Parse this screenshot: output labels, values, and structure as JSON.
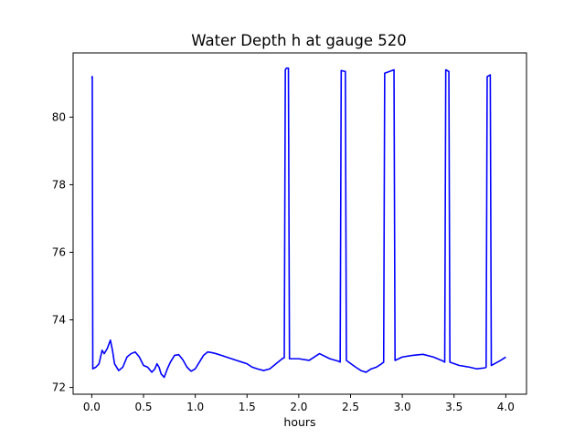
{
  "chart_data": {
    "type": "line",
    "title": "Water Depth h at gauge 520",
    "xlabel": "hours",
    "ylabel": "",
    "xlim": [
      -0.18,
      4.2
    ],
    "ylim": [
      71.8,
      81.9
    ],
    "xticks": [
      0.0,
      0.5,
      1.0,
      1.5,
      2.0,
      2.5,
      3.0,
      3.5,
      4.0
    ],
    "xtick_labels": [
      "0.0",
      "0.5",
      "1.0",
      "1.5",
      "2.0",
      "2.5",
      "3.0",
      "3.5",
      "4.0"
    ],
    "yticks": [
      72,
      74,
      76,
      78,
      80
    ],
    "ytick_labels": [
      "72",
      "74",
      "76",
      "78",
      "80"
    ],
    "grid": false,
    "series": [
      {
        "color": "#0000ff",
        "x": [
          0.0,
          0.005,
          0.01,
          0.04,
          0.07,
          0.1,
          0.12,
          0.15,
          0.18,
          0.2,
          0.22,
          0.26,
          0.3,
          0.34,
          0.38,
          0.42,
          0.46,
          0.5,
          0.54,
          0.58,
          0.61,
          0.63,
          0.65,
          0.67,
          0.7,
          0.73,
          0.76,
          0.8,
          0.84,
          0.88,
          0.92,
          0.96,
          1.0,
          1.04,
          1.08,
          1.12,
          1.16,
          1.2,
          1.25,
          1.3,
          1.35,
          1.4,
          1.45,
          1.5,
          1.55,
          1.6,
          1.66,
          1.72,
          1.78,
          1.84,
          1.86,
          1.87,
          1.88,
          1.9,
          1.91,
          2.0,
          2.1,
          2.2,
          2.3,
          2.38,
          2.4,
          2.41,
          2.45,
          2.46,
          2.55,
          2.6,
          2.65,
          2.7,
          2.75,
          2.8,
          2.82,
          2.83,
          2.92,
          2.93,
          3.0,
          3.1,
          3.2,
          3.3,
          3.38,
          3.41,
          3.42,
          3.45,
          3.46,
          3.55,
          3.65,
          3.72,
          3.8,
          3.81,
          3.82,
          3.85,
          3.86,
          3.95,
          4.0
        ],
        "y": [
          81.15,
          81.2,
          72.55,
          72.6,
          72.7,
          73.1,
          73.0,
          73.15,
          73.4,
          73.1,
          72.7,
          72.5,
          72.6,
          72.9,
          73.0,
          73.05,
          72.9,
          72.65,
          72.6,
          72.45,
          72.55,
          72.7,
          72.6,
          72.4,
          72.3,
          72.55,
          72.75,
          72.95,
          72.97,
          72.82,
          72.6,
          72.48,
          72.55,
          72.75,
          72.95,
          73.05,
          73.03,
          73.0,
          72.95,
          72.9,
          72.85,
          72.8,
          72.75,
          72.7,
          72.6,
          72.55,
          72.5,
          72.55,
          72.7,
          72.85,
          72.88,
          81.4,
          81.45,
          81.45,
          72.85,
          72.85,
          72.8,
          73.0,
          72.85,
          72.78,
          72.75,
          81.38,
          81.35,
          72.8,
          72.6,
          72.5,
          72.45,
          72.55,
          72.6,
          72.7,
          72.75,
          81.3,
          81.4,
          72.8,
          72.9,
          72.95,
          72.98,
          72.9,
          72.8,
          72.75,
          81.4,
          81.35,
          72.75,
          72.65,
          72.6,
          72.55,
          72.58,
          72.6,
          81.2,
          81.25,
          72.65,
          72.8,
          72.9
        ]
      }
    ]
  }
}
